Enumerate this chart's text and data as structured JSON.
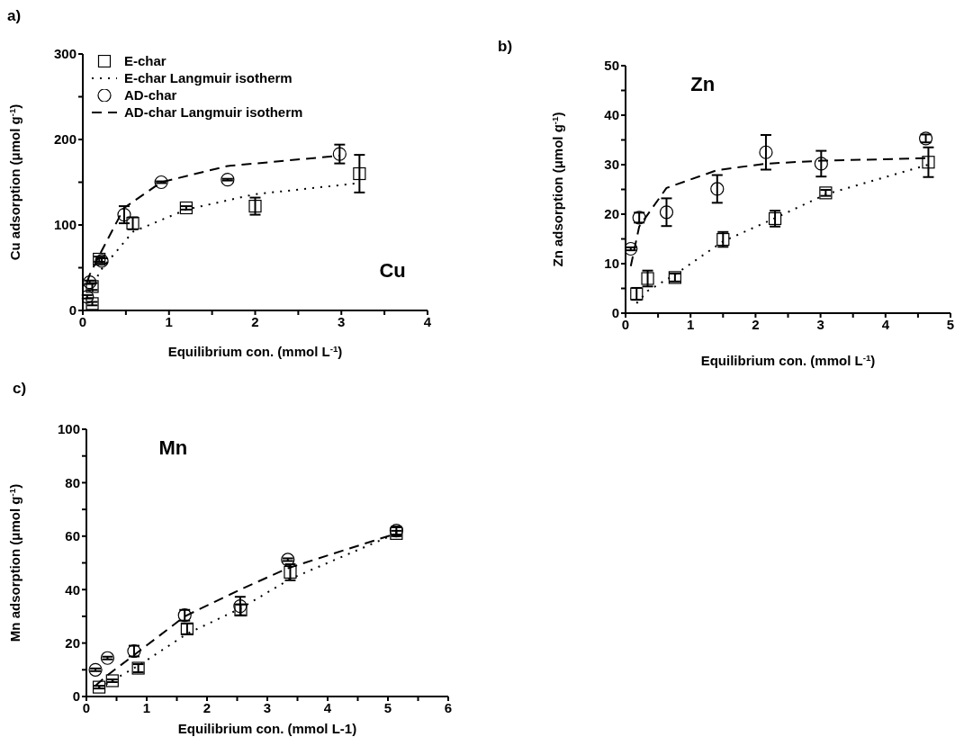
{
  "chart_data": [
    {
      "type": "scatter",
      "title": "a)",
      "xlabel": "Equilibrium con. (mmol L$^{-1}$)",
      "ylabel": "Cu adsorption (μmol g$^{-1}$)",
      "annotations": [
        "Cu"
      ],
      "xlim": [
        0,
        4
      ],
      "ylim": [
        0,
        300
      ],
      "xticks": [
        0,
        {
          "value": 0.5,
          "label": null
        },
        1,
        {
          "value": 1.5,
          "label": null
        },
        2,
        {
          "value": 2.5,
          "label": null
        },
        3,
        {
          "value": 3.5,
          "label": null
        },
        4
      ],
      "yticks": [
        0,
        {
          "value": 50,
          "label": null
        },
        100,
        {
          "value": 150,
          "label": null
        },
        200,
        {
          "value": 250,
          "label": null
        },
        300
      ],
      "legend": "top left",
      "series": [
        {
          "name": "E-char",
          "type": "scatter",
          "marker": "square",
          "color": "#000000",
          "x": [
            0.11,
            0.11,
            0.19,
            0.58,
            1.2,
            2.0,
            3.21
          ],
          "values": [
            8,
            28,
            60,
            102,
            120,
            122,
            160
          ],
          "errors": [
            2,
            4,
            3,
            7,
            2,
            10,
            22
          ]
        },
        {
          "name": "E-char Langmuir isotherm",
          "type": "line",
          "marker": "none",
          "line_style": "dotted",
          "color": "#000000",
          "x": [
            0.11,
            0.19,
            0.58,
            1.2,
            2.0,
            3.21
          ],
          "values": [
            22,
            45,
            92,
            118,
            136,
            149
          ]
        },
        {
          "name": "AD-char",
          "type": "scatter",
          "marker": "circle",
          "color": "#000000",
          "x": [
            0.05,
            0.08,
            0.22,
            0.48,
            0.91,
            1.68,
            2.98
          ],
          "values": [
            16,
            33,
            58,
            112,
            150,
            153,
            183
          ],
          "errors": [
            2,
            2,
            3,
            10,
            1,
            1,
            11
          ]
        },
        {
          "name": "AD-char Langmuir isotherm",
          "type": "line",
          "marker": "none",
          "line_style": "dashed",
          "color": "#000000",
          "x": [
            0.05,
            0.08,
            0.22,
            0.48,
            0.91,
            1.68,
            2.98
          ],
          "values": [
            33,
            42,
            70,
            120,
            150,
            169,
            181
          ]
        }
      ]
    },
    {
      "type": "scatter",
      "title": "b)",
      "xlabel": "Equilibrium con. (mmol L$^{-1}$)",
      "ylabel": "Zn adsorption (μmol g$^{-1}$)",
      "annotations": [
        "Zn"
      ],
      "xlim": [
        0,
        5
      ],
      "ylim": [
        0,
        50
      ],
      "xticks": [
        0,
        {
          "value": 0.5,
          "label": null
        },
        1,
        {
          "value": 1.5,
          "label": null
        },
        2,
        {
          "value": 2.5,
          "label": null
        },
        3,
        {
          "value": 3.5,
          "label": null
        },
        4,
        {
          "value": 4.5,
          "label": null
        },
        5
      ],
      "yticks": [
        0,
        {
          "value": 5,
          "label": null
        },
        10,
        {
          "value": 15,
          "label": null
        },
        20,
        {
          "value": 25,
          "label": null
        },
        30,
        {
          "value": 35,
          "label": null
        },
        40,
        {
          "value": 45,
          "label": null
        },
        50
      ],
      "series": [
        {
          "type": "scatter",
          "marker": "square",
          "color": "#000000",
          "x": [
            0.17,
            0.34,
            0.76,
            1.5,
            2.3,
            3.08,
            4.66
          ],
          "values": [
            3.9,
            7.0,
            7.2,
            14.9,
            19.1,
            24.3,
            30.5
          ],
          "errors": [
            1.2,
            1.6,
            0.8,
            1.5,
            1.6,
            0.6,
            3
          ]
        },
        {
          "type": "line",
          "marker": "none",
          "line_style": "dotted",
          "color": "#000000",
          "x": [
            0.17,
            0.34,
            0.76,
            1.5,
            2.3,
            3.08,
            4.66
          ],
          "values": [
            2.0,
            4.5,
            7.8,
            14.5,
            19.2,
            24,
            30
          ]
        },
        {
          "type": "scatter",
          "marker": "circle",
          "color": "#000000",
          "x": [
            0.08,
            0.21,
            0.63,
            1.41,
            2.16,
            3.01,
            4.62
          ],
          "values": [
            13,
            19.3,
            20.4,
            25.1,
            32.5,
            30.2,
            35.3
          ],
          "errors": [
            0.3,
            1,
            2.8,
            2.8,
            3.5,
            2.6,
            0.8
          ]
        },
        {
          "type": "line",
          "marker": "none",
          "line_style": "dashed",
          "color": "#000000",
          "x": [
            0.08,
            0.21,
            0.63,
            1.41,
            2.16,
            3.01,
            4.62
          ],
          "values": [
            9.5,
            17.5,
            25.3,
            28.9,
            30.2,
            30.8,
            31.3
          ]
        }
      ]
    },
    {
      "type": "scatter",
      "title": "c)",
      "xlabel": "Equilibrium con. (mmol L-1)",
      "ylabel": "Mn adsorption (μmol g$^{-1}$)",
      "annotations": [
        "Mn"
      ],
      "xlim": [
        0,
        6
      ],
      "ylim": [
        0,
        100
      ],
      "xticks": [
        0,
        {
          "value": 0.5,
          "label": null
        },
        1,
        {
          "value": 1.5,
          "label": null
        },
        2,
        {
          "value": 2.5,
          "label": null
        },
        3,
        {
          "value": 3.5,
          "label": null
        },
        4,
        {
          "value": 4.5,
          "label": null
        },
        5,
        {
          "value": 5.5,
          "label": null
        },
        6
      ],
      "yticks": [
        0,
        {
          "value": 10,
          "label": null
        },
        20,
        {
          "value": 30,
          "label": null
        },
        40,
        {
          "value": 50,
          "label": null
        },
        60,
        {
          "value": 70,
          "label": null
        },
        80,
        {
          "value": 90,
          "label": null
        },
        100
      ],
      "series": [
        {
          "type": "scatter",
          "marker": "square",
          "color": "#000000",
          "x": [
            0.21,
            0.43,
            0.86,
            1.67,
            2.56,
            3.38,
            5.14
          ],
          "values": [
            3.5,
            5.9,
            10.6,
            25.3,
            32.4,
            46.5,
            61
          ],
          "errors": [
            0.5,
            0.5,
            1.5,
            2,
            2,
            3,
            1
          ]
        },
        {
          "type": "line",
          "marker": "none",
          "line_style": "dotted",
          "color": "#000000",
          "x": [
            0.21,
            0.43,
            0.86,
            1.67,
            2.56,
            3.38,
            5.14
          ],
          "values": [
            3,
            6,
            11.5,
            23.5,
            33,
            44,
            61
          ]
        },
        {
          "type": "scatter",
          "marker": "circle",
          "color": "#000000",
          "x": [
            0.15,
            0.35,
            0.79,
            1.63,
            2.55,
            3.34,
            5.14
          ],
          "values": [
            10,
            14.4,
            17,
            30.4,
            33.8,
            51.2,
            62.1
          ],
          "errors": [
            0.5,
            0.5,
            2,
            2,
            3.5,
            0.5,
            1.5
          ]
        },
        {
          "type": "line",
          "marker": "none",
          "line_style": "dashed",
          "color": "#000000",
          "x": [
            0.15,
            0.35,
            0.79,
            1.63,
            2.55,
            3.34,
            5.14
          ],
          "values": [
            4,
            8,
            15.5,
            30,
            40,
            48,
            61
          ]
        }
      ]
    }
  ]
}
